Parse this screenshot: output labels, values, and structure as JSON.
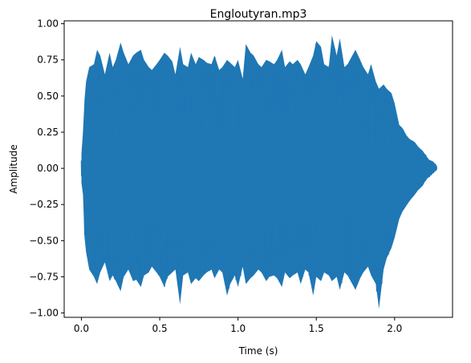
{
  "chart_data": {
    "type": "line",
    "title": "Engloutyran.mp3",
    "xlabel": "Time (s)",
    "ylabel": "Amplitude",
    "xlim": [
      -0.11,
      2.37
    ],
    "ylim": [
      -1.03,
      1.02
    ],
    "xticks": [
      0.0,
      0.5,
      1.0,
      1.5,
      2.0
    ],
    "xtick_labels": [
      "0.0",
      "0.5",
      "1.0",
      "1.5",
      "2.0"
    ],
    "yticks": [
      -1.0,
      -0.75,
      -0.5,
      -0.25,
      0.0,
      0.25,
      0.5,
      0.75,
      1.0
    ],
    "ytick_labels": [
      "−1.00",
      "−0.75",
      "−0.50",
      "−0.25",
      "0.00",
      "0.25",
      "0.50",
      "0.75",
      "1.00"
    ],
    "grid": false,
    "line_color": "#1f77b4",
    "series": [
      {
        "x": [
          0.0,
          0.01,
          0.02,
          0.03,
          0.05,
          0.08,
          0.1,
          0.12,
          0.15,
          0.18,
          0.2,
          0.22,
          0.25,
          0.27,
          0.3,
          0.33,
          0.35,
          0.38,
          0.4,
          0.43,
          0.45,
          0.48,
          0.5,
          0.53,
          0.55,
          0.58,
          0.6,
          0.63,
          0.65,
          0.68,
          0.7,
          0.73,
          0.75,
          0.78,
          0.8,
          0.83,
          0.85,
          0.88,
          0.9,
          0.93,
          0.95,
          0.98,
          1.0,
          1.03,
          1.05,
          1.08,
          1.1,
          1.13,
          1.15,
          1.18,
          1.2,
          1.23,
          1.25,
          1.28,
          1.3,
          1.33,
          1.35,
          1.38,
          1.4,
          1.43,
          1.45,
          1.48,
          1.5,
          1.53,
          1.55,
          1.58,
          1.6,
          1.63,
          1.65,
          1.68,
          1.7,
          1.73,
          1.75,
          1.78,
          1.8,
          1.83,
          1.85,
          1.88,
          1.9,
          1.93,
          1.95,
          1.98,
          2.0,
          2.03,
          2.05,
          2.08,
          2.1,
          2.13,
          2.15,
          2.18,
          2.2,
          2.22,
          2.24,
          2.26,
          2.27
        ],
        "y_max": [
          0.1,
          0.25,
          0.48,
          0.6,
          0.7,
          0.72,
          0.82,
          0.78,
          0.65,
          0.8,
          0.7,
          0.75,
          0.87,
          0.8,
          0.72,
          0.78,
          0.8,
          0.82,
          0.75,
          0.7,
          0.68,
          0.72,
          0.75,
          0.8,
          0.78,
          0.74,
          0.65,
          0.84,
          0.72,
          0.7,
          0.8,
          0.72,
          0.77,
          0.75,
          0.73,
          0.72,
          0.78,
          0.68,
          0.7,
          0.75,
          0.73,
          0.7,
          0.75,
          0.62,
          0.86,
          0.8,
          0.78,
          0.72,
          0.7,
          0.75,
          0.74,
          0.72,
          0.75,
          0.82,
          0.7,
          0.74,
          0.72,
          0.75,
          0.72,
          0.65,
          0.7,
          0.78,
          0.88,
          0.84,
          0.72,
          0.7,
          0.92,
          0.78,
          0.9,
          0.7,
          0.72,
          0.78,
          0.82,
          0.75,
          0.7,
          0.65,
          0.72,
          0.6,
          0.55,
          0.58,
          0.55,
          0.52,
          0.45,
          0.3,
          0.28,
          0.22,
          0.2,
          0.18,
          0.15,
          0.12,
          0.09,
          0.06,
          0.05,
          0.03,
          0.01
        ],
        "y_min": [
          -0.1,
          -0.18,
          -0.48,
          -0.58,
          -0.7,
          -0.75,
          -0.8,
          -0.72,
          -0.65,
          -0.78,
          -0.74,
          -0.78,
          -0.85,
          -0.75,
          -0.7,
          -0.78,
          -0.77,
          -0.82,
          -0.74,
          -0.72,
          -0.68,
          -0.72,
          -0.75,
          -0.82,
          -0.75,
          -0.72,
          -0.7,
          -0.94,
          -0.74,
          -0.72,
          -0.8,
          -0.76,
          -0.78,
          -0.74,
          -0.72,
          -0.7,
          -0.76,
          -0.7,
          -0.72,
          -0.88,
          -0.8,
          -0.74,
          -0.82,
          -0.68,
          -0.8,
          -0.76,
          -0.74,
          -0.7,
          -0.72,
          -0.78,
          -0.75,
          -0.74,
          -0.76,
          -0.82,
          -0.72,
          -0.76,
          -0.74,
          -0.72,
          -0.8,
          -0.7,
          -0.72,
          -0.88,
          -0.75,
          -0.78,
          -0.72,
          -0.74,
          -0.78,
          -0.75,
          -0.84,
          -0.72,
          -0.74,
          -0.8,
          -0.84,
          -0.76,
          -0.72,
          -0.68,
          -0.74,
          -0.8,
          -0.97,
          -0.7,
          -0.62,
          -0.55,
          -0.48,
          -0.35,
          -0.3,
          -0.25,
          -0.22,
          -0.18,
          -0.15,
          -0.12,
          -0.08,
          -0.06,
          -0.04,
          -0.02,
          -0.01
        ]
      }
    ]
  }
}
